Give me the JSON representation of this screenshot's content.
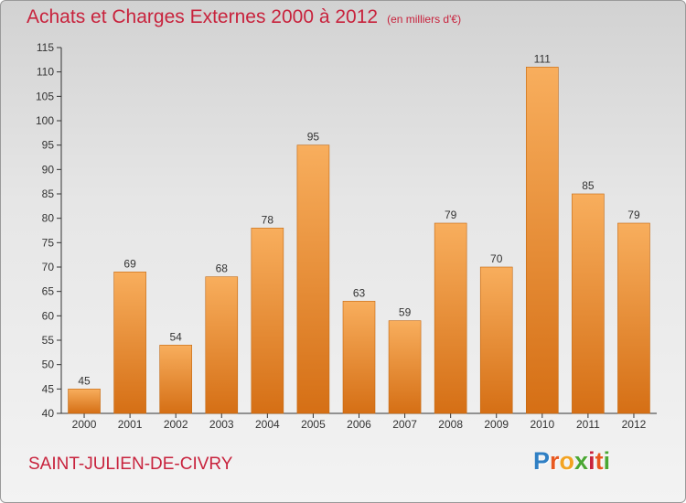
{
  "title": "Achats et Charges Externes 2000 à 2012",
  "subtitle": "(en milliers d'€)",
  "town": "SAINT-JULIEN-DE-CIVRY",
  "logo": {
    "text": "Proxiti",
    "letter_colors": [
      "#2f7fc4",
      "#e8581f",
      "#f2a322",
      "#4aa733",
      "#c8233d",
      "#e8581f",
      "#4aa733"
    ]
  },
  "colors": {
    "bar_light": "#f8ae5d",
    "bar_dark": "#d56f15",
    "title": "#c8233d"
  },
  "chart_data": {
    "type": "bar",
    "categories": [
      "2000",
      "2001",
      "2002",
      "2003",
      "2004",
      "2005",
      "2006",
      "2007",
      "2008",
      "2009",
      "2010",
      "2011",
      "2012"
    ],
    "values": [
      45,
      69,
      54,
      68,
      78,
      95,
      63,
      59,
      79,
      70,
      111,
      85,
      79
    ],
    "value_labels": [
      "45",
      "69",
      "54",
      "68",
      "78",
      "95",
      "63",
      "59",
      "79",
      "70",
      "111",
      "85",
      "79"
    ],
    "title": "Achats et Charges Externes 2000 à 2012",
    "xlabel": "",
    "ylabel": "",
    "ylim": [
      40,
      115
    ],
    "yticks": [
      40,
      45,
      50,
      55,
      60,
      65,
      70,
      75,
      80,
      85,
      90,
      95,
      100,
      105,
      110,
      115
    ],
    "grid": false,
    "legend": "none"
  }
}
